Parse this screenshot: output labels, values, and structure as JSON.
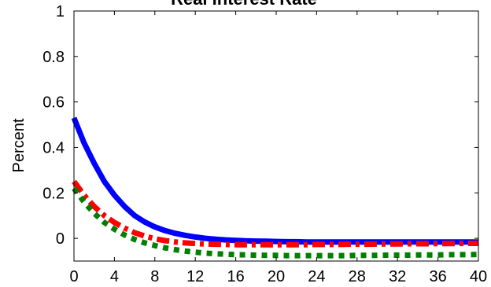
{
  "chart_data": {
    "type": "line",
    "title": "Real Interest Rate",
    "xlabel": "",
    "ylabel": "Percent",
    "xlim": [
      0,
      40
    ],
    "ylim": [
      -0.1,
      1
    ],
    "grid": false,
    "x_ticks": [
      0,
      4,
      8,
      12,
      16,
      20,
      24,
      28,
      32,
      36,
      40
    ],
    "y_ticks": [
      0,
      0.2,
      0.4,
      0.6,
      0.8,
      1
    ],
    "y_tick_labels": [
      "0",
      "0.2",
      "0.4",
      "0.6",
      "0.8",
      "1"
    ],
    "x": [
      0,
      1,
      2,
      3,
      4,
      5,
      6,
      7,
      8,
      9,
      10,
      11,
      12,
      13,
      14,
      15,
      16,
      17,
      18,
      19,
      20,
      21,
      22,
      23,
      24,
      25,
      26,
      27,
      28,
      29,
      30,
      31,
      32,
      33,
      34,
      35,
      36,
      37,
      38,
      39,
      40
    ],
    "series": [
      {
        "color": "#0000ff",
        "style": "solid",
        "values": [
          0.53,
          0.42,
          0.33,
          0.25,
          0.19,
          0.14,
          0.1,
          0.072,
          0.05,
          0.034,
          0.022,
          0.013,
          0.006,
          0.0,
          -0.004,
          -0.007,
          -0.009,
          -0.011,
          -0.012,
          -0.013,
          -0.014,
          -0.015,
          -0.015,
          -0.016,
          -0.016,
          -0.016,
          -0.016,
          -0.016,
          -0.016,
          -0.016,
          -0.016,
          -0.016,
          -0.016,
          -0.016,
          -0.016,
          -0.016,
          -0.016,
          -0.016,
          -0.016,
          -0.016,
          -0.016
        ]
      },
      {
        "color": "#ff0000",
        "style": "dashdot",
        "values": [
          0.25,
          0.19,
          0.14,
          0.1,
          0.07,
          0.045,
          0.025,
          0.01,
          -0.002,
          -0.01,
          -0.016,
          -0.02,
          -0.023,
          -0.025,
          -0.026,
          -0.027,
          -0.028,
          -0.028,
          -0.028,
          -0.028,
          -0.028,
          -0.028,
          -0.028,
          -0.028,
          -0.027,
          -0.027,
          -0.027,
          -0.026,
          -0.026,
          -0.026,
          -0.025,
          -0.025,
          -0.025,
          -0.024,
          -0.024,
          -0.024,
          -0.023,
          -0.023,
          -0.023,
          -0.022,
          -0.022
        ]
      },
      {
        "color": "#007f00",
        "style": "dotted",
        "values": [
          0.22,
          0.16,
          0.11,
          0.07,
          0.04,
          0.015,
          -0.005,
          -0.02,
          -0.032,
          -0.042,
          -0.05,
          -0.056,
          -0.061,
          -0.065,
          -0.068,
          -0.07,
          -0.072,
          -0.073,
          -0.074,
          -0.075,
          -0.075,
          -0.076,
          -0.076,
          -0.076,
          -0.076,
          -0.076,
          -0.076,
          -0.076,
          -0.075,
          -0.075,
          -0.075,
          -0.074,
          -0.074,
          -0.074,
          -0.073,
          -0.073,
          -0.073,
          -0.072,
          -0.072,
          -0.072,
          -0.071
        ]
      }
    ]
  }
}
